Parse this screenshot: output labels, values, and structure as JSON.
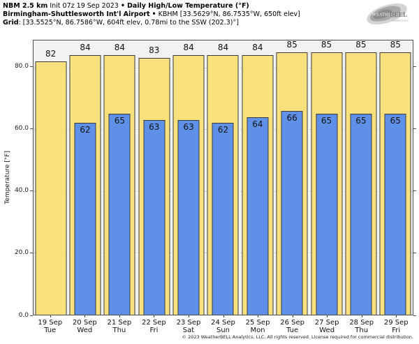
{
  "header": {
    "model": "NBM 2.5 km",
    "init": "Init 07z 19 Sep 2023",
    "sep": "•",
    "product": "Daily High/Low Temperature (°F)",
    "station_name": "Birmingham-Shuttlesworth Int'l Airport",
    "station_info": "KBHM [33.5629°N, 86.7535°W, 650ft elev]",
    "grid_label": "Grid",
    "grid_info": ": [33.5525°N, 86.7586°W, 604ft elev, 0.78mi to the SSW (202.3)°]"
  },
  "logo": {
    "weather": "Weather",
    "bell": "BELL",
    "sub": "Analytics LLC"
  },
  "chart_data": {
    "type": "bar",
    "title": "NBM 2.5 km Daily High/Low Temperature (°F) — Birmingham-Shuttlesworth Int'l Airport (KBHM)",
    "xlabel": "",
    "ylabel": "Temperature [°F]",
    "ylim": [
      0,
      88.75
    ],
    "yticks": [
      0,
      20,
      40,
      60,
      80
    ],
    "ytick_labels": [
      "0.0",
      "20.0",
      "40.0",
      "60.0",
      "80.0"
    ],
    "grid": "horizontal dashed",
    "legend_position": "none",
    "categories": [
      {
        "date": "19 Sep",
        "day": "Tue"
      },
      {
        "date": "20 Sep",
        "day": "Wed"
      },
      {
        "date": "21 Sep",
        "day": "Thu"
      },
      {
        "date": "22 Sep",
        "day": "Fri"
      },
      {
        "date": "23 Sep",
        "day": "Sat"
      },
      {
        "date": "24 Sep",
        "day": "Sun"
      },
      {
        "date": "25 Sep",
        "day": "Mon"
      },
      {
        "date": "26 Sep",
        "day": "Tue"
      },
      {
        "date": "27 Sep",
        "day": "Wed"
      },
      {
        "date": "28 Sep",
        "day": "Thu"
      },
      {
        "date": "29 Sep",
        "day": "Fri"
      }
    ],
    "series": [
      {
        "name": "Daily High",
        "color": "#fbe17e",
        "values": [
          82,
          84,
          84,
          83,
          84,
          84,
          84,
          85,
          85,
          85,
          85
        ]
      },
      {
        "name": "Daily Low",
        "color": "#5f90e8",
        "values": [
          null,
          62,
          65,
          63,
          63,
          62,
          64,
          66,
          65,
          65,
          65
        ]
      }
    ],
    "bar_outline_color": "#3a3a3a",
    "plot_bg_color": "#f2f2f1",
    "gridline_color": "#d0d0d0"
  },
  "footer": {
    "copyright": "© 2023 WeatherBELL Analytics, LLC. All rights reserved. License required for commercial distribution."
  }
}
